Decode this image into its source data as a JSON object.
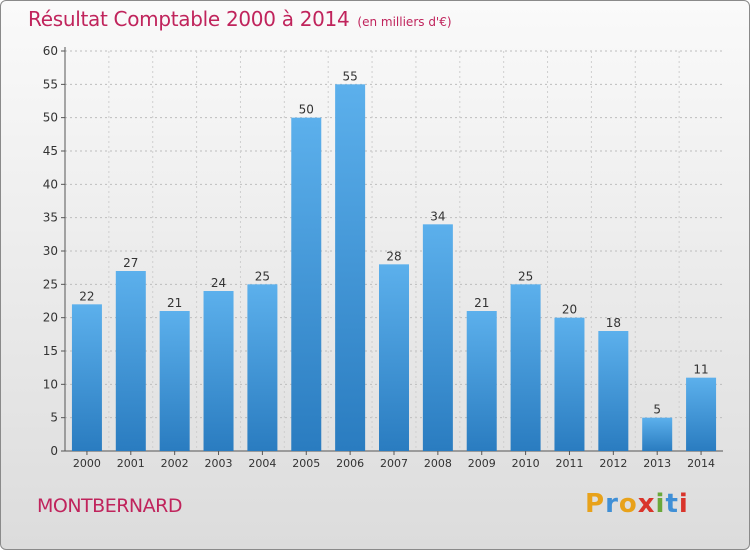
{
  "title": "Résultat Comptable 2000 à 2014",
  "subtitle": "(en milliers d'€)",
  "commune": "MONTBERNARD",
  "logo": {
    "text": "Proxiti",
    "colors": [
      "#e8a21a",
      "#3f8fd6",
      "#e8a21a",
      "#d9342b",
      "#6aa83a",
      "#3f8fd6",
      "#d9342b"
    ]
  },
  "chart_data": {
    "type": "bar",
    "categories": [
      "2000",
      "2001",
      "2002",
      "2003",
      "2004",
      "2005",
      "2006",
      "2007",
      "2008",
      "2009",
      "2010",
      "2011",
      "2012",
      "2013",
      "2014"
    ],
    "values": [
      22,
      27,
      21,
      24,
      25,
      50,
      55,
      28,
      34,
      21,
      25,
      20,
      18,
      5,
      11
    ],
    "ylim": [
      0,
      60
    ],
    "yticks": [
      0,
      5,
      10,
      15,
      20,
      25,
      30,
      35,
      40,
      45,
      50,
      55,
      60
    ],
    "grid": true,
    "bar_color": "#3a8fd2"
  }
}
